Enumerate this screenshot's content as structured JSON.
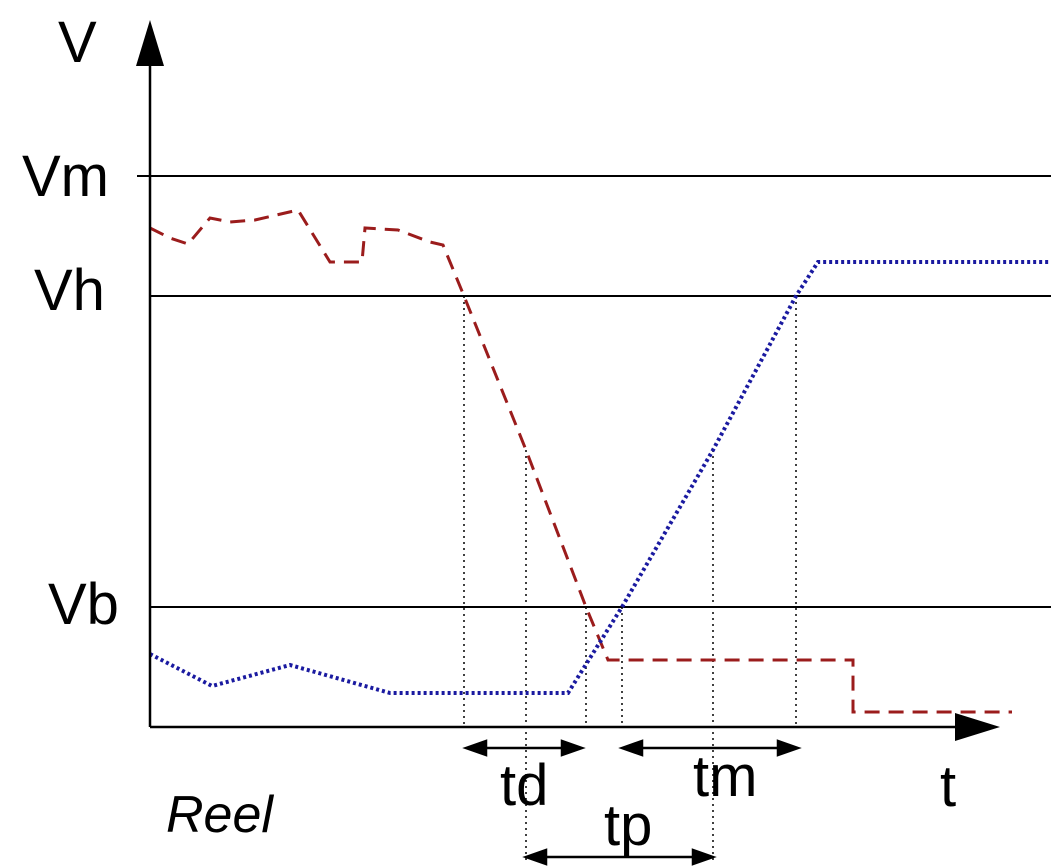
{
  "colors": {
    "axis": "#000000",
    "reference_line": "#000000",
    "guide_line": "#000000",
    "falling_signal": "#9b1c1c",
    "rising_signal": "#1a1aa0",
    "background": "#ffffff"
  },
  "axes": {
    "y_label": "V",
    "x_label": "t"
  },
  "levels": {
    "vm": "Vm",
    "vh": "Vh",
    "vb": "Vb"
  },
  "intervals": {
    "td": "td",
    "tm": "tm",
    "tp": "tp"
  },
  "caption": "Reel",
  "signals": [
    {
      "id": "falling",
      "style": "dashed",
      "color_key": "falling_signal"
    },
    {
      "id": "rising",
      "style": "dotted",
      "color_key": "rising_signal"
    }
  ],
  "icons": {
    "y_axis_arrow": "arrow-up-icon",
    "x_axis_arrow": "arrow-right-icon"
  }
}
